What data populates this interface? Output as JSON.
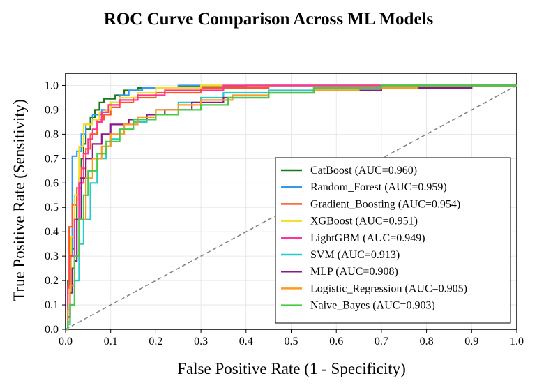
{
  "chart_data": {
    "type": "line",
    "title": "ROC Curve Comparison Across ML Models",
    "xlabel": "False Positive Rate (1 - Specificity)",
    "ylabel": "True Positive Rate (Sensitivity)",
    "xlim": [
      0,
      1
    ],
    "ylim": [
      0,
      1.05
    ],
    "xticks": [
      0.0,
      0.1,
      0.2,
      0.3,
      0.4,
      0.5,
      0.6,
      0.7,
      0.8,
      0.9,
      1.0
    ],
    "yticks": [
      0.0,
      0.1,
      0.2,
      0.3,
      0.4,
      0.5,
      0.6,
      0.7,
      0.8,
      0.9,
      1.0
    ],
    "xtick_labels": [
      "0.0",
      "0.1",
      "0.2",
      "0.3",
      "0.4",
      "0.5",
      "0.6",
      "0.7",
      "0.8",
      "0.9",
      "1.0"
    ],
    "ytick_labels": [
      "0.0",
      "0.1",
      "0.2",
      "0.3",
      "0.4",
      "0.5",
      "0.6",
      "0.7",
      "0.8",
      "0.9",
      "1.0"
    ],
    "grid": true,
    "legend_position": "lower-right",
    "diagonal": {
      "x": [
        0,
        1
      ],
      "y": [
        0,
        1
      ],
      "style": "dashed",
      "color": "#808080"
    },
    "series": [
      {
        "name": "CatBoost",
        "label": "CatBoost (AUC=0.960)",
        "auc": 0.96,
        "color": "#1a7a1a",
        "x": [
          0,
          0.005,
          0.005,
          0.012,
          0.012,
          0.02,
          0.02,
          0.025,
          0.025,
          0.03,
          0.03,
          0.035,
          0.035,
          0.04,
          0.04,
          0.045,
          0.045,
          0.055,
          0.055,
          0.065,
          0.065,
          0.075,
          0.075,
          0.085,
          0.085,
          0.11,
          0.11,
          0.13,
          0.13,
          0.16,
          0.16,
          0.25,
          0.25,
          0.4,
          0.4,
          0.6,
          0.6,
          1.0
        ],
        "y": [
          0,
          0,
          0.2,
          0.2,
          0.33,
          0.33,
          0.45,
          0.45,
          0.55,
          0.55,
          0.62,
          0.62,
          0.7,
          0.7,
          0.76,
          0.76,
          0.82,
          0.82,
          0.87,
          0.87,
          0.9,
          0.9,
          0.93,
          0.93,
          0.945,
          0.945,
          0.96,
          0.96,
          0.98,
          0.98,
          0.99,
          0.99,
          0.995,
          0.995,
          1.0,
          1.0,
          1.0,
          1.0
        ]
      },
      {
        "name": "Random_Forest",
        "label": "Random_Forest (AUC=0.959)",
        "auc": 0.959,
        "color": "#3399ee",
        "x": [
          0,
          0.005,
          0.005,
          0.01,
          0.01,
          0.015,
          0.015,
          0.025,
          0.025,
          0.035,
          0.035,
          0.045,
          0.045,
          0.06,
          0.06,
          0.08,
          0.08,
          0.1,
          0.1,
          0.12,
          0.12,
          0.14,
          0.14,
          0.17,
          0.17,
          0.25,
          0.25,
          0.4,
          0.4,
          0.55,
          0.55,
          0.7,
          0.7,
          1.0
        ],
        "y": [
          0,
          0,
          0.05,
          0.05,
          0.3,
          0.3,
          0.71,
          0.71,
          0.73,
          0.73,
          0.8,
          0.8,
          0.84,
          0.84,
          0.88,
          0.88,
          0.9,
          0.9,
          0.93,
          0.93,
          0.96,
          0.96,
          0.98,
          0.98,
          0.99,
          0.99,
          1.0,
          1.0,
          1.0,
          1.0,
          1.0,
          1.0,
          1.0,
          1.0
        ]
      },
      {
        "name": "Gradient_Boosting",
        "label": "Gradient_Boosting (AUC=0.954)",
        "auc": 0.954,
        "color": "#ff5520",
        "x": [
          0,
          0.005,
          0.005,
          0.008,
          0.008,
          0.015,
          0.015,
          0.025,
          0.025,
          0.035,
          0.035,
          0.045,
          0.045,
          0.055,
          0.055,
          0.07,
          0.07,
          0.085,
          0.085,
          0.1,
          0.1,
          0.12,
          0.12,
          0.15,
          0.15,
          0.2,
          0.2,
          0.3,
          0.3,
          0.45,
          0.45,
          0.55,
          0.55,
          1.0
        ],
        "y": [
          0,
          0,
          0.17,
          0.17,
          0.42,
          0.42,
          0.51,
          0.51,
          0.58,
          0.58,
          0.66,
          0.66,
          0.74,
          0.74,
          0.8,
          0.8,
          0.86,
          0.86,
          0.88,
          0.88,
          0.91,
          0.91,
          0.93,
          0.93,
          0.95,
          0.95,
          0.97,
          0.97,
          0.99,
          0.99,
          1.0,
          1.0,
          1.0,
          1.0
        ]
      },
      {
        "name": "XGBoost",
        "label": "XGBoost (AUC=0.951)",
        "auc": 0.951,
        "color": "#f5dd20",
        "x": [
          0,
          0.005,
          0.005,
          0.012,
          0.012,
          0.02,
          0.02,
          0.03,
          0.03,
          0.04,
          0.04,
          0.06,
          0.06,
          0.075,
          0.075,
          0.09,
          0.09,
          0.1,
          0.1,
          0.12,
          0.12,
          0.16,
          0.16,
          0.2,
          0.2,
          0.3,
          0.3,
          0.5,
          0.5,
          1.0
        ],
        "y": [
          0,
          0,
          0.15,
          0.15,
          0.38,
          0.38,
          0.55,
          0.55,
          0.75,
          0.75,
          0.84,
          0.84,
          0.86,
          0.86,
          0.89,
          0.89,
          0.9,
          0.9,
          0.93,
          0.93,
          0.95,
          0.95,
          0.97,
          0.97,
          0.99,
          0.99,
          1.0,
          1.0,
          1.0,
          1.0
        ]
      },
      {
        "name": "LightGBM",
        "label": "LightGBM (AUC=0.949)",
        "auc": 0.949,
        "color": "#ff3399",
        "x": [
          0,
          0.005,
          0.005,
          0.01,
          0.01,
          0.02,
          0.02,
          0.03,
          0.03,
          0.04,
          0.04,
          0.05,
          0.05,
          0.06,
          0.06,
          0.07,
          0.07,
          0.08,
          0.08,
          0.095,
          0.095,
          0.12,
          0.12,
          0.16,
          0.16,
          0.22,
          0.22,
          0.35,
          0.35,
          0.5,
          0.5,
          1.0
        ],
        "y": [
          0,
          0,
          0.18,
          0.18,
          0.3,
          0.3,
          0.45,
          0.45,
          0.6,
          0.6,
          0.72,
          0.72,
          0.78,
          0.78,
          0.82,
          0.82,
          0.85,
          0.85,
          0.89,
          0.89,
          0.92,
          0.92,
          0.94,
          0.94,
          0.96,
          0.96,
          0.98,
          0.98,
          1.0,
          1.0,
          1.0,
          1.0
        ]
      },
      {
        "name": "SVM",
        "label": "SVM (AUC=0.913)",
        "auc": 0.913,
        "color": "#22cccc",
        "x": [
          0,
          0.005,
          0.005,
          0.01,
          0.01,
          0.02,
          0.02,
          0.03,
          0.03,
          0.04,
          0.04,
          0.055,
          0.055,
          0.07,
          0.07,
          0.09,
          0.09,
          0.1,
          0.1,
          0.12,
          0.12,
          0.15,
          0.15,
          0.18,
          0.18,
          0.2,
          0.2,
          0.25,
          0.25,
          0.3,
          0.3,
          0.35,
          0.35,
          0.45,
          0.45,
          0.55,
          0.55,
          0.7,
          0.7,
          1.0
        ],
        "y": [
          0,
          0,
          0.02,
          0.02,
          0.1,
          0.1,
          0.2,
          0.2,
          0.35,
          0.35,
          0.45,
          0.45,
          0.6,
          0.6,
          0.7,
          0.7,
          0.75,
          0.75,
          0.78,
          0.78,
          0.82,
          0.82,
          0.85,
          0.85,
          0.88,
          0.88,
          0.9,
          0.9,
          0.93,
          0.93,
          0.95,
          0.95,
          0.97,
          0.97,
          0.98,
          0.98,
          0.99,
          0.99,
          1.0,
          1.0
        ]
      },
      {
        "name": "MLP",
        "label": "MLP (AUC=0.908)",
        "auc": 0.908,
        "color": "#8a1a8a",
        "x": [
          0,
          0.005,
          0.005,
          0.01,
          0.01,
          0.015,
          0.015,
          0.02,
          0.02,
          0.025,
          0.025,
          0.035,
          0.035,
          0.045,
          0.045,
          0.06,
          0.06,
          0.08,
          0.08,
          0.1,
          0.1,
          0.14,
          0.14,
          0.18,
          0.18,
          0.22,
          0.22,
          0.28,
          0.28,
          0.35,
          0.35,
          0.45,
          0.45,
          0.55,
          0.55,
          0.7,
          0.7,
          0.9,
          0.9,
          1.0
        ],
        "y": [
          0,
          0,
          0.05,
          0.05,
          0.15,
          0.15,
          0.25,
          0.25,
          0.28,
          0.28,
          0.45,
          0.45,
          0.62,
          0.62,
          0.7,
          0.7,
          0.76,
          0.76,
          0.8,
          0.8,
          0.84,
          0.84,
          0.86,
          0.86,
          0.88,
          0.88,
          0.9,
          0.9,
          0.93,
          0.93,
          0.95,
          0.95,
          0.97,
          0.97,
          0.98,
          0.98,
          0.99,
          0.99,
          1.0,
          1.0
        ]
      },
      {
        "name": "Logistic_Regression",
        "label": "Logistic_Regression (AUC=0.905)",
        "auc": 0.905,
        "color": "#ff9922",
        "x": [
          0,
          0.005,
          0.005,
          0.01,
          0.01,
          0.02,
          0.02,
          0.03,
          0.03,
          0.045,
          0.045,
          0.06,
          0.06,
          0.08,
          0.08,
          0.1,
          0.1,
          0.13,
          0.13,
          0.16,
          0.16,
          0.2,
          0.2,
          0.25,
          0.25,
          0.3,
          0.3,
          0.37,
          0.37,
          0.45,
          0.45,
          0.55,
          0.55,
          0.65,
          0.65,
          0.78,
          0.78,
          1.0
        ],
        "y": [
          0,
          0,
          0.08,
          0.08,
          0.18,
          0.18,
          0.3,
          0.3,
          0.45,
          0.45,
          0.62,
          0.62,
          0.7,
          0.7,
          0.75,
          0.75,
          0.8,
          0.8,
          0.84,
          0.84,
          0.87,
          0.87,
          0.9,
          0.9,
          0.92,
          0.92,
          0.94,
          0.94,
          0.96,
          0.96,
          0.97,
          0.97,
          0.98,
          0.98,
          0.99,
          0.99,
          1.0,
          1.0
        ]
      },
      {
        "name": "Naive_Bayes",
        "label": "Naive_Bayes (AUC=0.903)",
        "auc": 0.903,
        "color": "#44cc44",
        "x": [
          0,
          0.005,
          0.005,
          0.01,
          0.01,
          0.02,
          0.02,
          0.03,
          0.03,
          0.04,
          0.04,
          0.05,
          0.05,
          0.07,
          0.07,
          0.09,
          0.09,
          0.12,
          0.12,
          0.15,
          0.15,
          0.2,
          0.2,
          0.25,
          0.25,
          0.3,
          0.3,
          0.36,
          0.36,
          0.45,
          0.45,
          0.55,
          0.55,
          0.7,
          0.7,
          1.0
        ],
        "y": [
          0,
          0,
          0.03,
          0.03,
          0.1,
          0.1,
          0.3,
          0.3,
          0.45,
          0.45,
          0.55,
          0.55,
          0.65,
          0.65,
          0.72,
          0.72,
          0.77,
          0.77,
          0.82,
          0.82,
          0.86,
          0.86,
          0.88,
          0.88,
          0.9,
          0.9,
          0.92,
          0.92,
          0.95,
          0.95,
          0.97,
          0.97,
          0.99,
          0.99,
          1.0,
          1.0
        ]
      }
    ]
  }
}
